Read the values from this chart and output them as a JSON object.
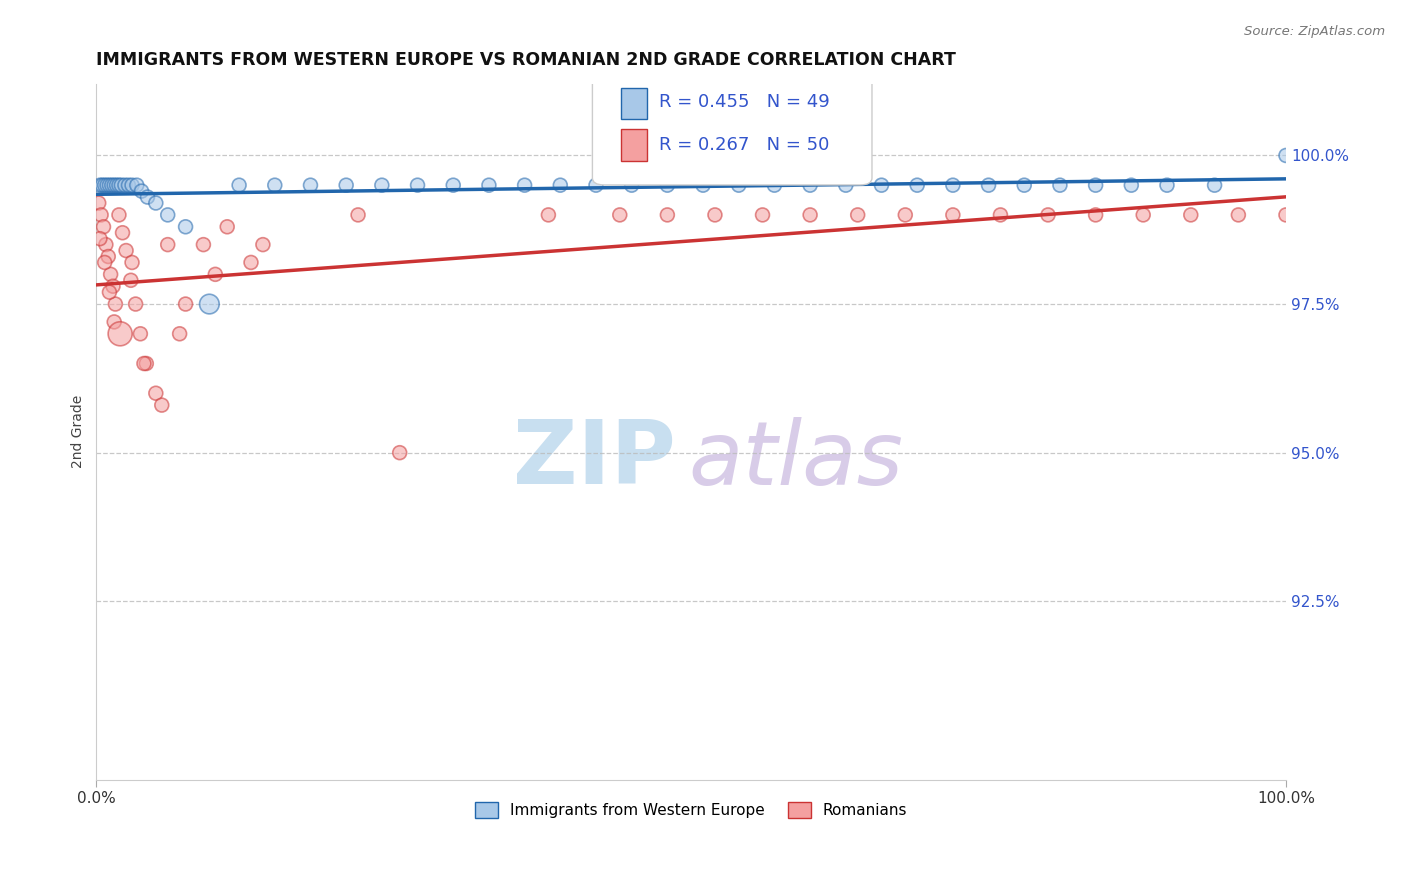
{
  "title": "IMMIGRANTS FROM WESTERN EUROPE VS ROMANIAN 2ND GRADE CORRELATION CHART",
  "source": "Source: ZipAtlas.com",
  "ylabel": "2nd Grade",
  "legend_blue_label": "Immigrants from Western Europe",
  "legend_pink_label": "Romanians",
  "R_blue": 0.455,
  "N_blue": 49,
  "R_pink": 0.267,
  "N_pink": 50,
  "blue_face": "#a8c8e8",
  "blue_edge": "#2166ac",
  "pink_face": "#f4a0a0",
  "pink_edge": "#cb3333",
  "trend_blue": "#2166ac",
  "trend_pink": "#cb3333",
  "wm_zip_color": "#c8dff0",
  "wm_atlas_color": "#d8cce8",
  "tick_color": "#3355cc",
  "xlim": [
    0,
    100
  ],
  "ylim": [
    89.5,
    101.2
  ],
  "yticks": [
    92.5,
    95.0,
    97.5,
    100.0
  ],
  "blue_x": [
    0.3,
    0.5,
    0.7,
    0.9,
    1.1,
    1.3,
    1.5,
    1.7,
    1.9,
    2.1,
    2.4,
    2.7,
    3.0,
    3.4,
    3.8,
    4.3,
    5.0,
    6.0,
    7.5,
    9.5,
    12.0,
    15.0,
    18.0,
    21.0,
    24.0,
    27.0,
    30.0,
    33.0,
    36.0,
    39.0,
    42.0,
    45.0,
    48.0,
    51.0,
    54.0,
    57.0,
    60.0,
    63.0,
    66.0,
    69.0,
    72.0,
    75.0,
    78.0,
    81.0,
    84.0,
    87.0,
    90.0,
    94.0,
    100.0
  ],
  "blue_y": [
    99.5,
    99.5,
    99.5,
    99.5,
    99.5,
    99.5,
    99.5,
    99.5,
    99.5,
    99.5,
    99.5,
    99.5,
    99.5,
    99.5,
    99.4,
    99.3,
    99.2,
    99.0,
    98.8,
    97.5,
    99.5,
    99.5,
    99.5,
    99.5,
    99.5,
    99.5,
    99.5,
    99.5,
    99.5,
    99.5,
    99.5,
    99.5,
    99.5,
    99.5,
    99.5,
    99.5,
    99.5,
    99.5,
    99.5,
    99.5,
    99.5,
    99.5,
    99.5,
    99.5,
    99.5,
    99.5,
    99.5,
    99.5,
    100.0
  ],
  "blue_sizes": [
    100,
    100,
    100,
    100,
    100,
    100,
    100,
    100,
    100,
    100,
    100,
    100,
    100,
    100,
    100,
    100,
    100,
    100,
    100,
    200,
    100,
    100,
    100,
    100,
    100,
    100,
    100,
    100,
    100,
    100,
    100,
    100,
    100,
    100,
    100,
    100,
    100,
    100,
    100,
    100,
    100,
    100,
    100,
    100,
    100,
    100,
    100,
    100,
    100
  ],
  "pink_x": [
    0.2,
    0.4,
    0.6,
    0.8,
    1.0,
    1.2,
    1.4,
    1.6,
    1.9,
    2.2,
    2.5,
    2.9,
    3.3,
    3.7,
    4.2,
    5.0,
    6.0,
    7.5,
    9.0,
    11.0,
    14.0,
    22.0,
    25.5,
    38.0,
    44.0,
    48.0,
    52.0,
    56.0,
    60.0,
    64.0,
    68.0,
    72.0,
    76.0,
    80.0,
    84.0,
    88.0,
    92.0,
    96.0,
    100.0,
    0.3,
    0.7,
    1.1,
    1.5,
    2.0,
    3.0,
    4.0,
    5.5,
    7.0,
    10.0,
    13.0
  ],
  "pink_y": [
    99.2,
    99.0,
    98.8,
    98.5,
    98.3,
    98.0,
    97.8,
    97.5,
    99.0,
    98.7,
    98.4,
    97.9,
    97.5,
    97.0,
    96.5,
    96.0,
    98.5,
    97.5,
    98.5,
    98.8,
    98.5,
    99.0,
    95.0,
    99.0,
    99.0,
    99.0,
    99.0,
    99.0,
    99.0,
    99.0,
    99.0,
    99.0,
    99.0,
    99.0,
    99.0,
    99.0,
    99.0,
    99.0,
    99.0,
    98.6,
    98.2,
    97.7,
    97.2,
    97.0,
    98.2,
    96.5,
    95.8,
    97.0,
    98.0,
    98.2
  ],
  "pink_sizes": [
    100,
    100,
    100,
    100,
    100,
    100,
    100,
    100,
    100,
    100,
    100,
    100,
    100,
    100,
    100,
    100,
    100,
    100,
    100,
    100,
    100,
    100,
    100,
    100,
    100,
    100,
    100,
    100,
    100,
    100,
    100,
    100,
    100,
    100,
    100,
    100,
    100,
    100,
    100,
    100,
    100,
    100,
    100,
    300,
    100,
    100,
    100,
    100,
    100,
    100
  ]
}
